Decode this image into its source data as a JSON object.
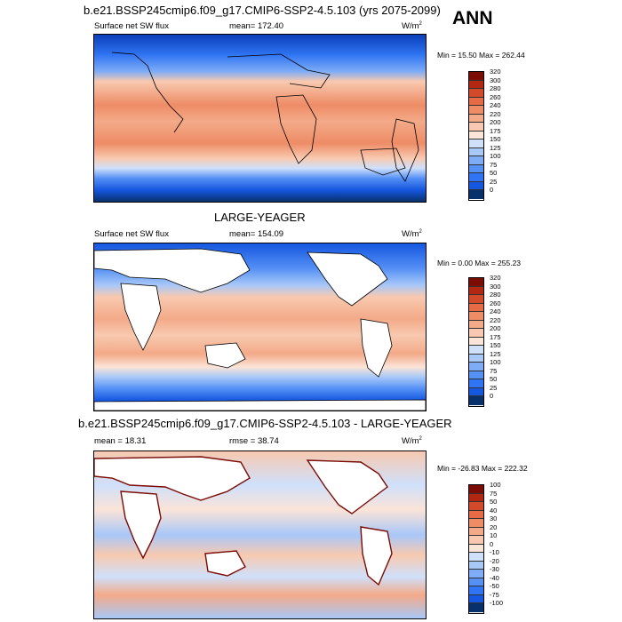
{
  "season": "ANN",
  "colors": {
    "full": [
      "#08306b",
      "#0a3fb8",
      "#1557e0",
      "#2f74f2",
      "#5590f5",
      "#7eacf6",
      "#a8c8f8",
      "#cfe0fb",
      "#fbe4d8",
      "#f8c9b0",
      "#f3aa88",
      "#ee8c66",
      "#e56a45",
      "#d24a2a",
      "#b32612",
      "#7a0b05"
    ],
    "diff": [
      "#08306b",
      "#0a3fb8",
      "#1557e0",
      "#2f74f2",
      "#5590f5",
      "#7eacf6",
      "#a8c8f8",
      "#cfe0fb",
      "#fbe4d8",
      "#f8c9b0",
      "#f3aa88",
      "#ee8c66",
      "#e56a45",
      "#d24a2a",
      "#b32612",
      "#7a0b05"
    ]
  },
  "chart_data": [
    {
      "type": "heatmap",
      "title": "b.e21.BSSP245cmip6.f09_g17.CMIP6-SSP2-4.5.103 (yrs 2075-2099)",
      "variable": "Surface net SW flux",
      "stat_label": "mean=",
      "stat_value": "172.40",
      "units": "W/m",
      "units_exp": "2",
      "minmax": "Min =  15.50 Max = 262.44",
      "min": 15.5,
      "max": 262.44,
      "mean": 172.4,
      "colorbar_levels": [
        "320",
        "300",
        "280",
        "260",
        "240",
        "220",
        "200",
        "175",
        "150",
        "125",
        "100",
        "75",
        "50",
        "25",
        "0"
      ]
    },
    {
      "type": "heatmap",
      "title": "LARGE-YEAGER",
      "variable": "Surface net SW flux",
      "stat_label": "mean=",
      "stat_value": "154.09",
      "units": "W/m",
      "units_exp": "2",
      "minmax": "Min =   0.00 Max = 255.23",
      "min": 0.0,
      "max": 255.23,
      "mean": 154.09,
      "colorbar_levels": [
        "320",
        "300",
        "280",
        "260",
        "240",
        "220",
        "200",
        "175",
        "150",
        "125",
        "100",
        "75",
        "50",
        "25",
        "0"
      ]
    },
    {
      "type": "heatmap",
      "title": "b.e21.BSSP245cmip6.f09_g17.CMIP6-SSP2-4.5.103 - LARGE-YEAGER",
      "mean_label": "mean =",
      "mean_value": "18.31",
      "rmse_label": "rmse =",
      "rmse_value": "38.74",
      "units": "W/m",
      "units_exp": "2",
      "minmax": "Min = -26.83 Max = 222.32",
      "min": -26.83,
      "max": 222.32,
      "mean": 18.31,
      "rmse": 38.74,
      "colorbar_levels": [
        "100",
        "75",
        "50",
        "40",
        "30",
        "20",
        "10",
        "0",
        "-10",
        "-20",
        "-30",
        "-40",
        "-50",
        "-75",
        "-100"
      ]
    }
  ]
}
